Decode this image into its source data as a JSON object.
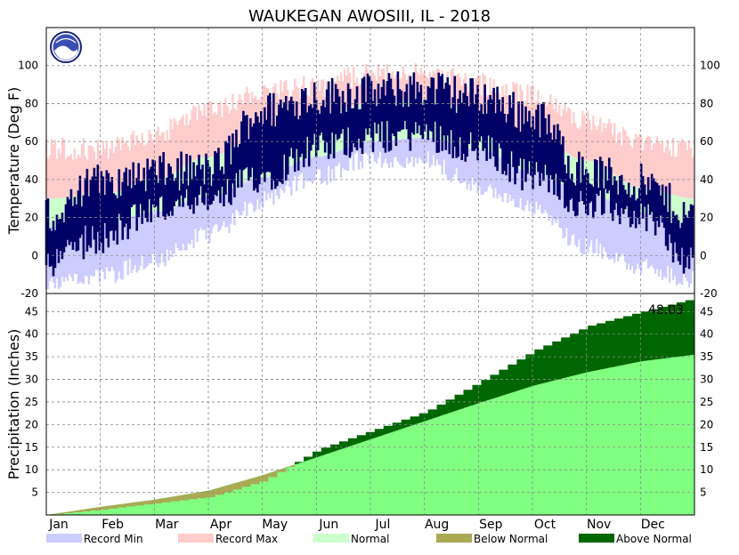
{
  "chart_data": {
    "type": "area",
    "title": "WAUKEGAN  AWOSIII, IL - 2018",
    "year": 2018,
    "months": [
      "Jan",
      "Feb",
      "Mar",
      "Apr",
      "May",
      "Jun",
      "Jul",
      "Aug",
      "Sep",
      "Oct",
      "Nov",
      "Dec"
    ],
    "temperature": {
      "ylabel": "Temperature (Deg F)",
      "ylim": [
        -20,
        120
      ],
      "yticks": [
        -20,
        0,
        20,
        40,
        60,
        80,
        100
      ],
      "grid": true,
      "normal_band": {
        "note": "Normal low / normal high (Deg F), month-start values",
        "low": [
          15,
          16,
          23,
          31,
          41,
          52,
          60,
          62,
          56,
          44,
          33,
          22
        ],
        "high": [
          30,
          32,
          40,
          52,
          63,
          74,
          80,
          82,
          76,
          64,
          50,
          36
        ]
      },
      "record_max": [
        62,
        62,
        70,
        82,
        92,
        95,
        102,
        102,
        96,
        90,
        78,
        66
      ],
      "record_min": [
        -18,
        -16,
        -8,
        6,
        24,
        36,
        46,
        45,
        32,
        20,
        0,
        -10
      ],
      "observed_high": [
        20,
        38,
        44,
        45,
        76,
        84,
        86,
        88,
        84,
        74,
        44,
        38
      ],
      "observed_low": [
        -5,
        10,
        24,
        28,
        42,
        56,
        62,
        64,
        56,
        42,
        28,
        22
      ]
    },
    "precipitation": {
      "ylabel": "Precipitation (Inches)",
      "ylim": [
        0,
        49
      ],
      "yticks": [
        5,
        10,
        15,
        20,
        25,
        30,
        35,
        40,
        45
      ],
      "grid": true,
      "total_label": "48.03",
      "normal_cumulative": [
        0,
        1.8,
        3.4,
        5.4,
        8.8,
        12.8,
        16.8,
        20.8,
        24.8,
        28.6,
        31.6,
        34.0,
        35.5
      ],
      "observed_cumulative": [
        0,
        1.2,
        2.6,
        4.0,
        7.6,
        14.5,
        18.7,
        22.9,
        29.5,
        36.4,
        41.8,
        45.0,
        48.03
      ]
    },
    "legend": [
      {
        "label": "Record Min",
        "color": "#ccccff"
      },
      {
        "label": "Record Max",
        "color": "#ffcccc"
      },
      {
        "label": "Normal",
        "color": "#ccffcc"
      },
      {
        "label": "Below Normal",
        "color": "#aaaa55"
      },
      {
        "label": "Above Normal",
        "color": "#006600"
      }
    ],
    "colors": {
      "observed": "#000066",
      "normal_precip": "#80ff80",
      "grid": "#888888"
    }
  }
}
